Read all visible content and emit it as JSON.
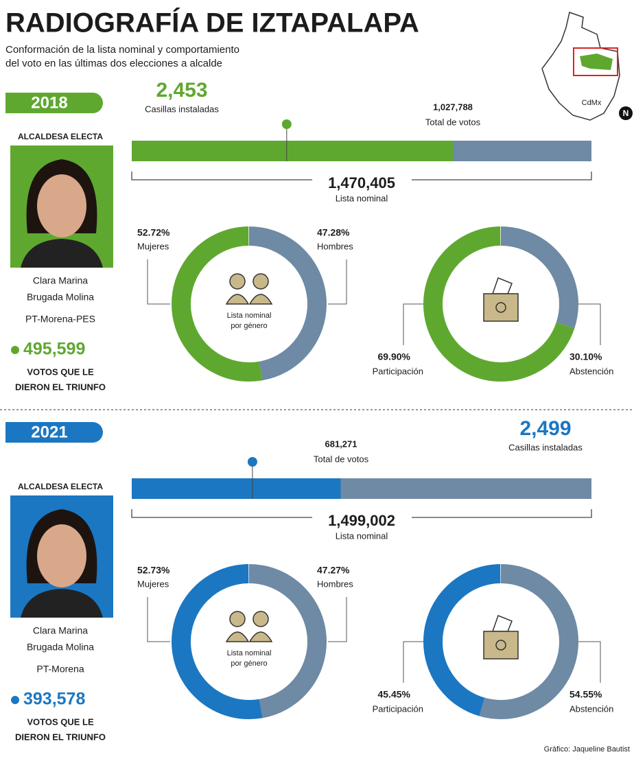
{
  "header": {
    "title": "RADIOGRAFÍA DE IZTAPALAPA",
    "subtitle_lines": [
      "Conformación de la lista nominal y comportamiento",
      "del voto en las últimas dos elecciones a alcalde"
    ]
  },
  "map": {
    "label": "CdMx",
    "north": "N"
  },
  "elections": [
    {
      "year": "2018",
      "color": "#5fa830",
      "rest_color": "#6e8aa4",
      "casillas": {
        "value": 2453,
        "label": "2,453"
      },
      "casillas_label": "Casillas instaladas",
      "total_votes": {
        "value": 1027788,
        "label": "1,027,788"
      },
      "total_votes_label": "Total de votos",
      "lista_nominal": {
        "value": 1470405,
        "label": "1,470,405"
      },
      "lista_nominal_label": "Lista nominal",
      "winner_label": "ALCALDESA ELECTA",
      "name_lines": [
        "Clara Marina",
        "Brugada Molina"
      ],
      "party": "PT-Morena-PES",
      "winner_votes": {
        "value": 495599,
        "label": "495,599"
      },
      "winner_votes_lines": [
        "VOTOS QUE LE",
        "DIERON EL TRIUNFO"
      ],
      "gender": {
        "center_lines": [
          "Lista nominal",
          "por género"
        ],
        "items": [
          {
            "name": "Mujeres",
            "pct": {
              "value": 52.72,
              "label": "52.72%"
            }
          },
          {
            "name": "Hombres",
            "pct": {
              "value": 47.28,
              "label": "47.28%"
            }
          }
        ]
      },
      "participation": {
        "items": [
          {
            "name": "Participación",
            "pct": {
              "value": 69.9,
              "label": "69.90%"
            }
          },
          {
            "name": "Abstención",
            "pct": {
              "value": 30.1,
              "label": "30.10%"
            }
          }
        ]
      }
    },
    {
      "year": "2021",
      "color": "#1b77c2",
      "rest_color": "#6e8aa4",
      "casillas": {
        "value": 2499,
        "label": "2,499"
      },
      "casillas_label": "Casillas instaladas",
      "total_votes": {
        "value": 681271,
        "label": "681,271"
      },
      "total_votes_label": "Total de votos",
      "lista_nominal": {
        "value": 1499002,
        "label": "1,499,002"
      },
      "lista_nominal_label": "Lista nominal",
      "winner_label": "ALCALDESA ELECTA",
      "name_lines": [
        "Clara Marina",
        "Brugada Molina"
      ],
      "party": "PT-Morena",
      "winner_votes": {
        "value": 393578,
        "label": "393,578"
      },
      "winner_votes_lines": [
        "VOTOS QUE LE",
        "DIERON EL TRIUNFO"
      ],
      "gender": {
        "center_lines": [
          "Lista nominal",
          "por género"
        ],
        "items": [
          {
            "name": "Mujeres",
            "pct": {
              "value": 52.73,
              "label": "52.73%"
            }
          },
          {
            "name": "Hombres",
            "pct": {
              "value": 47.27,
              "label": "47.27%"
            }
          }
        ]
      },
      "participation": {
        "items": [
          {
            "name": "Participación",
            "pct": {
              "value": 45.45,
              "label": "45.45%"
            }
          },
          {
            "name": "Abstención",
            "pct": {
              "value": 54.55,
              "label": "54.55%"
            }
          }
        ]
      }
    }
  ],
  "credit": "Gráfico: Jaqueline Bautist"
}
